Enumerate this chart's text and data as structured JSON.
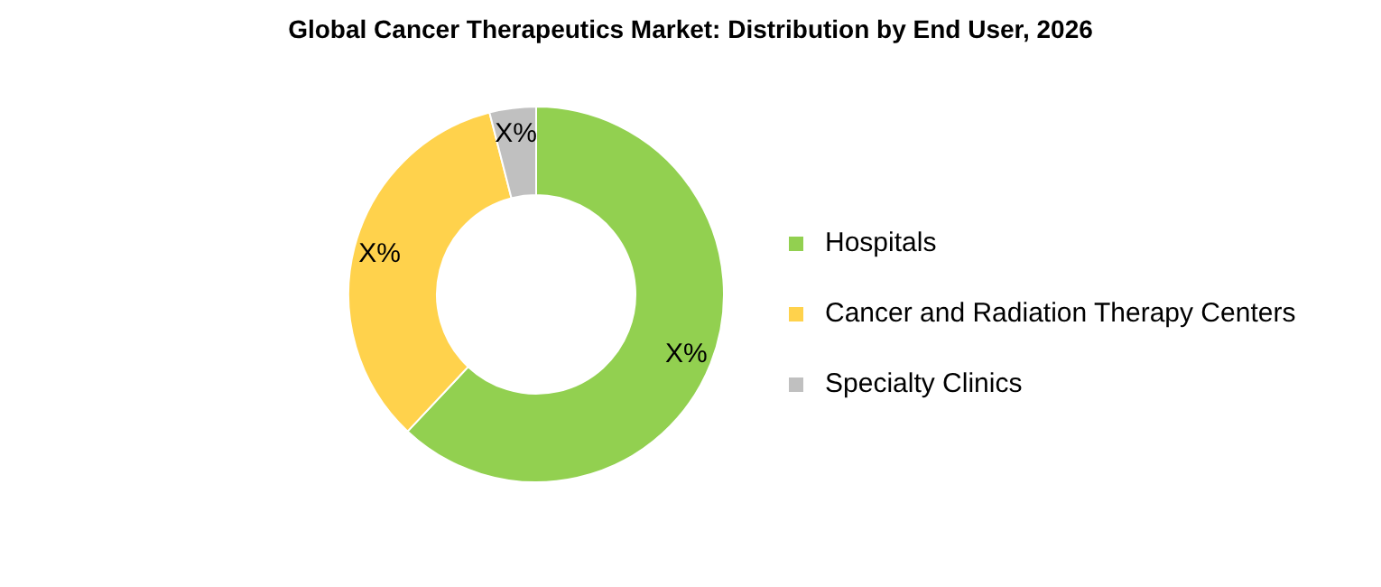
{
  "chart_data": {
    "type": "donut",
    "title": "Global Cancer Therapeutics Market: Distribution by End User, 2026",
    "categories": [
      "Hospitals",
      "Cancer and Radiation Therapy Centers",
      "Specialty Clinics"
    ],
    "values": [
      62,
      34,
      4
    ],
    "colors": [
      "#92d050",
      "#ffd24c",
      "#c0c0c0"
    ],
    "value_labels": [
      "X%",
      "X%",
      "X%"
    ],
    "legend": "right"
  }
}
